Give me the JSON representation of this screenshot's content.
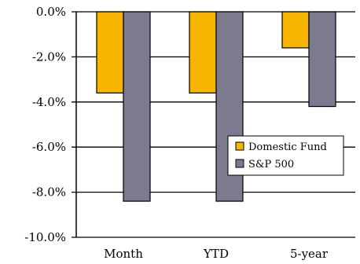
{
  "chart_data": {
    "type": "bar",
    "categories": [
      "Month",
      "YTD",
      "5-year"
    ],
    "series": [
      {
        "name": "Domestic Fund",
        "values": [
          -3.6,
          -3.6,
          -1.6
        ],
        "color": "#F7B500"
      },
      {
        "name": "S&P 500",
        "values": [
          -8.4,
          -8.4,
          -4.2
        ],
        "color": "#7B7A8E"
      }
    ],
    "ylim": [
      -10.0,
      0.0
    ],
    "yticks": [
      "0.0%",
      "-2.0%",
      "-4.0%",
      "-6.0%",
      "-8.0%",
      "-10.0%"
    ],
    "ytick_values": [
      0,
      -2,
      -4,
      -6,
      -8,
      -10
    ],
    "grid": true,
    "legend_position": "right"
  }
}
